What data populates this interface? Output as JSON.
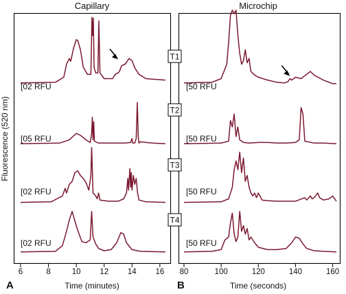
{
  "chart_data": [
    {
      "type": "line",
      "panel_letter": "A",
      "title": "Capillary",
      "xlabel": "Time (minutes)",
      "ylabel": "Fluorescence (520 nm)",
      "xlim": [
        6,
        16.5
      ],
      "x_ticks": [
        6,
        8,
        10,
        12,
        14,
        16
      ],
      "line_color": "#7a1830",
      "series": [
        {
          "trace_label": "T1",
          "scale_label": "[02 RFU",
          "arrow_at": [
            13.0,
            0.33
          ],
          "points": [
            [
              6,
              0.04
            ],
            [
              8.5,
              0.05
            ],
            [
              9.1,
              0.12
            ],
            [
              9.3,
              0.3
            ],
            [
              9.5,
              0.38
            ],
            [
              9.6,
              0.34
            ],
            [
              9.8,
              0.52
            ],
            [
              10.0,
              0.64
            ],
            [
              10.1,
              0.63
            ],
            [
              10.3,
              0.5
            ],
            [
              10.5,
              0.26
            ],
            [
              10.8,
              0.16
            ],
            [
              11.05,
              0.16
            ],
            [
              11.12,
              0.95
            ],
            [
              11.17,
              0.7
            ],
            [
              11.22,
              0.94
            ],
            [
              11.28,
              0.25
            ],
            [
              11.4,
              0.18
            ],
            [
              11.55,
              0.18
            ],
            [
              11.62,
              0.9
            ],
            [
              11.7,
              0.18
            ],
            [
              12.0,
              0.1
            ],
            [
              12.6,
              0.1
            ],
            [
              12.8,
              0.16
            ],
            [
              13.0,
              0.18
            ],
            [
              13.1,
              0.2
            ],
            [
              13.25,
              0.28
            ],
            [
              13.5,
              0.3
            ],
            [
              13.8,
              0.38
            ],
            [
              14.0,
              0.35
            ],
            [
              14.2,
              0.25
            ],
            [
              14.5,
              0.16
            ],
            [
              15,
              0.1
            ],
            [
              16.4,
              0.08
            ]
          ]
        },
        {
          "trace_label": "T2",
          "scale_label": "[05 RFU",
          "points": [
            [
              6,
              0.04
            ],
            [
              8.8,
              0.05
            ],
            [
              9.5,
              0.1
            ],
            [
              10.0,
              0.2
            ],
            [
              10.3,
              0.17
            ],
            [
              10.7,
              0.1
            ],
            [
              11.0,
              0.06
            ],
            [
              11.1,
              0.2
            ],
            [
              11.15,
              0.45
            ],
            [
              11.2,
              0.1
            ],
            [
              11.25,
              0.38
            ],
            [
              11.3,
              0.08
            ],
            [
              11.6,
              0.05
            ],
            [
              12.5,
              0.05
            ],
            [
              13.5,
              0.05
            ],
            [
              13.9,
              0.06
            ],
            [
              14.0,
              0.12
            ],
            [
              14.05,
              0.05
            ],
            [
              14.2,
              0.05
            ],
            [
              14.3,
              0.12
            ],
            [
              14.38,
              0.68
            ],
            [
              14.45,
              0.15
            ],
            [
              14.5,
              0.05
            ],
            [
              14.6,
              0.07
            ],
            [
              15.0,
              0.06
            ],
            [
              15.5,
              0.05
            ],
            [
              16.4,
              0.04
            ]
          ]
        },
        {
          "trace_label": "T3",
          "scale_label": "[02 RFU",
          "points": [
            [
              6,
              0.04
            ],
            [
              8.2,
              0.05
            ],
            [
              8.6,
              0.1
            ],
            [
              9.0,
              0.15
            ],
            [
              9.2,
              0.28
            ],
            [
              9.3,
              0.2
            ],
            [
              9.5,
              0.35
            ],
            [
              9.7,
              0.4
            ],
            [
              9.9,
              0.55
            ],
            [
              10.1,
              0.58
            ],
            [
              10.3,
              0.5
            ],
            [
              10.5,
              0.45
            ],
            [
              10.7,
              0.38
            ],
            [
              10.9,
              0.25
            ],
            [
              11.05,
              0.5
            ],
            [
              11.1,
              0.98
            ],
            [
              11.15,
              0.6
            ],
            [
              11.2,
              0.2
            ],
            [
              11.4,
              0.15
            ],
            [
              11.5,
              0.1
            ],
            [
              11.6,
              0.2
            ],
            [
              11.7,
              0.08
            ],
            [
              12.3,
              0.06
            ],
            [
              13.0,
              0.06
            ],
            [
              13.4,
              0.1
            ],
            [
              13.6,
              0.2
            ],
            [
              13.7,
              0.45
            ],
            [
              13.75,
              0.25
            ],
            [
              13.85,
              0.62
            ],
            [
              13.9,
              0.3
            ],
            [
              13.95,
              0.55
            ],
            [
              14.0,
              0.25
            ],
            [
              14.1,
              0.5
            ],
            [
              14.2,
              0.35
            ],
            [
              14.3,
              0.45
            ],
            [
              14.4,
              0.2
            ],
            [
              14.5,
              0.08
            ],
            [
              15,
              0.05
            ],
            [
              16.4,
              0.04
            ]
          ]
        },
        {
          "trace_label": "T4",
          "scale_label": "[02 RFU",
          "points": [
            [
              6,
              0.04
            ],
            [
              8.5,
              0.05
            ],
            [
              9.0,
              0.15
            ],
            [
              9.3,
              0.4
            ],
            [
              9.5,
              0.6
            ],
            [
              9.7,
              0.75
            ],
            [
              9.85,
              0.62
            ],
            [
              10.0,
              0.5
            ],
            [
              10.2,
              0.35
            ],
            [
              10.4,
              0.22
            ],
            [
              10.7,
              0.2
            ],
            [
              11.0,
              0.25
            ],
            [
              11.1,
              0.75
            ],
            [
              11.2,
              0.3
            ],
            [
              11.4,
              0.18
            ],
            [
              11.6,
              0.1
            ],
            [
              12.0,
              0.06
            ],
            [
              12.5,
              0.08
            ],
            [
              12.9,
              0.2
            ],
            [
              13.2,
              0.38
            ],
            [
              13.4,
              0.35
            ],
            [
              13.6,
              0.2
            ],
            [
              14.0,
              0.08
            ],
            [
              14.6,
              0.05
            ],
            [
              16.4,
              0.04
            ]
          ]
        }
      ]
    },
    {
      "type": "line",
      "panel_letter": "B",
      "title": "Microchip",
      "xlabel": "Time (seconds)",
      "xlim": [
        80,
        162
      ],
      "x_ticks": [
        80,
        100,
        120,
        140,
        160
      ],
      "line_color": "#7a1830",
      "series": [
        {
          "trace_label": "T1",
          "scale_label": "[50 RFU",
          "arrow_at": [
            137,
            0.1
          ],
          "points": [
            [
              80,
              0.04
            ],
            [
              95,
              0.05
            ],
            [
              100,
              0.1
            ],
            [
              103,
              0.3
            ],
            [
              104,
              0.6
            ],
            [
              105,
              0.98
            ],
            [
              106,
              1.05
            ],
            [
              107,
              1.0
            ],
            [
              108,
              1.05
            ],
            [
              109,
              0.7
            ],
            [
              110,
              0.45
            ],
            [
              111,
              0.3
            ],
            [
              112,
              0.35
            ],
            [
              113,
              0.5
            ],
            [
              114,
              0.32
            ],
            [
              115,
              0.38
            ],
            [
              116,
              0.2
            ],
            [
              118,
              0.15
            ],
            [
              120,
              0.12
            ],
            [
              125,
              0.08
            ],
            [
              130,
              0.05
            ],
            [
              134,
              0.04
            ],
            [
              136,
              0.06
            ],
            [
              137,
              0.1
            ],
            [
              138,
              0.08
            ],
            [
              140,
              0.12
            ],
            [
              143,
              0.1
            ],
            [
              145,
              0.14
            ],
            [
              148,
              0.2
            ],
            [
              150,
              0.15
            ],
            [
              155,
              0.08
            ],
            [
              160,
              0.03
            ],
            [
              162,
              0.03
            ]
          ]
        },
        {
          "trace_label": "T2",
          "scale_label": "[50 RFU",
          "points": [
            [
              80,
              0.04
            ],
            [
              100,
              0.05
            ],
            [
              104,
              0.08
            ],
            [
              105,
              0.4
            ],
            [
              106,
              0.3
            ],
            [
              107,
              0.5
            ],
            [
              108,
              0.15
            ],
            [
              109,
              0.3
            ],
            [
              110,
              0.1
            ],
            [
              112,
              0.06
            ],
            [
              115,
              0.05
            ],
            [
              120,
              0.06
            ],
            [
              125,
              0.06
            ],
            [
              130,
              0.05
            ],
            [
              135,
              0.05
            ],
            [
              140,
              0.06
            ],
            [
              142,
              0.1
            ],
            [
              143,
              0.6
            ],
            [
              144,
              0.5
            ],
            [
              145,
              0.08
            ],
            [
              150,
              0.05
            ],
            [
              155,
              0.05
            ],
            [
              162,
              0.04
            ]
          ]
        },
        {
          "trace_label": "T3",
          "scale_label": "[50 RFU",
          "points": [
            [
              80,
              0.04
            ],
            [
              100,
              0.05
            ],
            [
              104,
              0.1
            ],
            [
              106,
              0.3
            ],
            [
              107,
              0.6
            ],
            [
              108,
              0.75
            ],
            [
              109,
              0.6
            ],
            [
              110,
              0.9
            ],
            [
              111,
              0.55
            ],
            [
              112,
              0.8
            ],
            [
              113,
              0.4
            ],
            [
              114,
              0.5
            ],
            [
              115,
              0.3
            ],
            [
              116,
              0.2
            ],
            [
              117,
              0.15
            ],
            [
              118,
              0.2
            ],
            [
              119,
              0.12
            ],
            [
              120,
              0.2
            ],
            [
              122,
              0.08
            ],
            [
              125,
              0.07
            ],
            [
              130,
              0.06
            ],
            [
              135,
              0.06
            ],
            [
              140,
              0.06
            ],
            [
              145,
              0.12
            ],
            [
              146,
              0.08
            ],
            [
              148,
              0.15
            ],
            [
              149,
              0.1
            ],
            [
              150,
              0.12
            ],
            [
              152,
              0.2
            ],
            [
              153,
              0.12
            ],
            [
              155,
              0.08
            ],
            [
              158,
              0.1
            ],
            [
              160,
              0.15
            ],
            [
              162,
              0.06
            ]
          ]
        },
        {
          "trace_label": "T4",
          "scale_label": "[50 RFU",
          "points": [
            [
              80,
              0.04
            ],
            [
              95,
              0.05
            ],
            [
              100,
              0.08
            ],
            [
              102,
              0.25
            ],
            [
              104,
              0.3
            ],
            [
              105,
              0.55
            ],
            [
              106,
              0.72
            ],
            [
              107,
              0.35
            ],
            [
              108,
              0.22
            ],
            [
              109,
              0.3
            ],
            [
              110,
              0.75
            ],
            [
              111,
              0.4
            ],
            [
              112,
              0.5
            ],
            [
              113,
              0.35
            ],
            [
              114,
              0.45
            ],
            [
              115,
              0.25
            ],
            [
              116,
              0.3
            ],
            [
              118,
              0.2
            ],
            [
              120,
              0.12
            ],
            [
              125,
              0.08
            ],
            [
              130,
              0.08
            ],
            [
              135,
              0.1
            ],
            [
              138,
              0.2
            ],
            [
              140,
              0.3
            ],
            [
              142,
              0.28
            ],
            [
              144,
              0.18
            ],
            [
              146,
              0.1
            ],
            [
              150,
              0.06
            ],
            [
              155,
              0.05
            ],
            [
              162,
              0.04
            ]
          ]
        }
      ]
    }
  ]
}
